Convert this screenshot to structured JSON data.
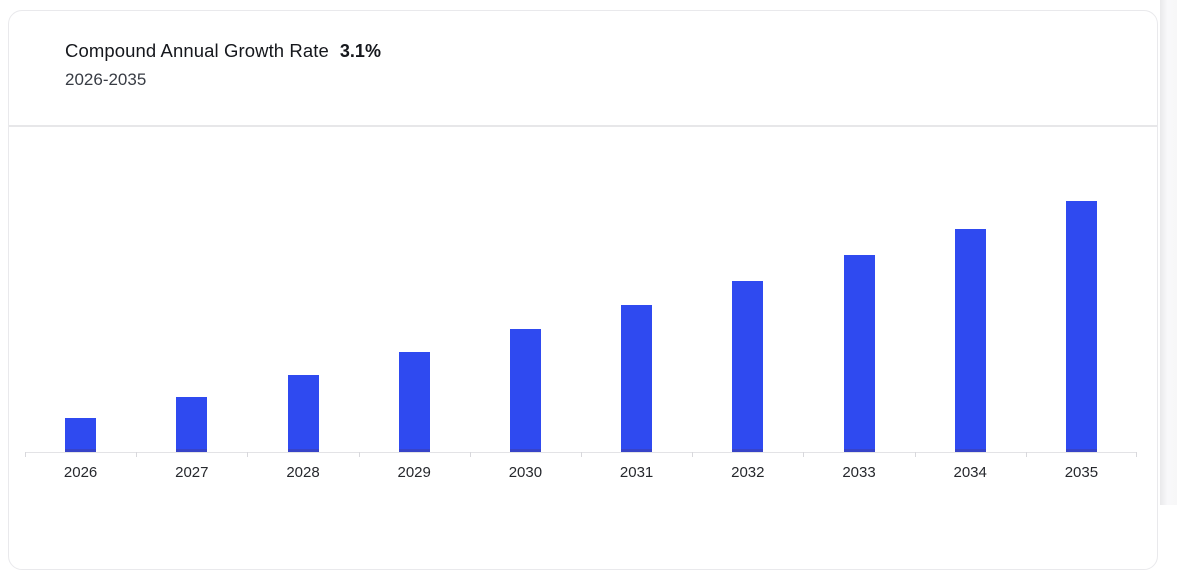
{
  "header": {
    "title": "Compound Annual Growth Rate",
    "cagr_value": "3.1%",
    "period": "2026-2035"
  },
  "chart_data": {
    "type": "bar",
    "title": "Compound Annual Growth Rate 3.1%",
    "subtitle": "2026-2035",
    "categories": [
      "2026",
      "2027",
      "2028",
      "2029",
      "2030",
      "2031",
      "2032",
      "2033",
      "2034",
      "2035"
    ],
    "values": [
      13.5,
      21.9,
      30.7,
      39.8,
      49.0,
      58.6,
      68.1,
      78.5,
      88.8,
      100
    ],
    "values_note": "no value axis shown in chart; values are relative bar heights (% of tallest bar, 2035)",
    "xlabel": "",
    "ylabel": "",
    "ylim": [
      0,
      100
    ],
    "grid": false,
    "legend": false,
    "bar_color": "#2f4af0",
    "bar_base_color": "#3743c8",
    "axis_color": "#e3e3e6",
    "tick_color": "#d8d8dc",
    "label_color": "#26282d"
  }
}
